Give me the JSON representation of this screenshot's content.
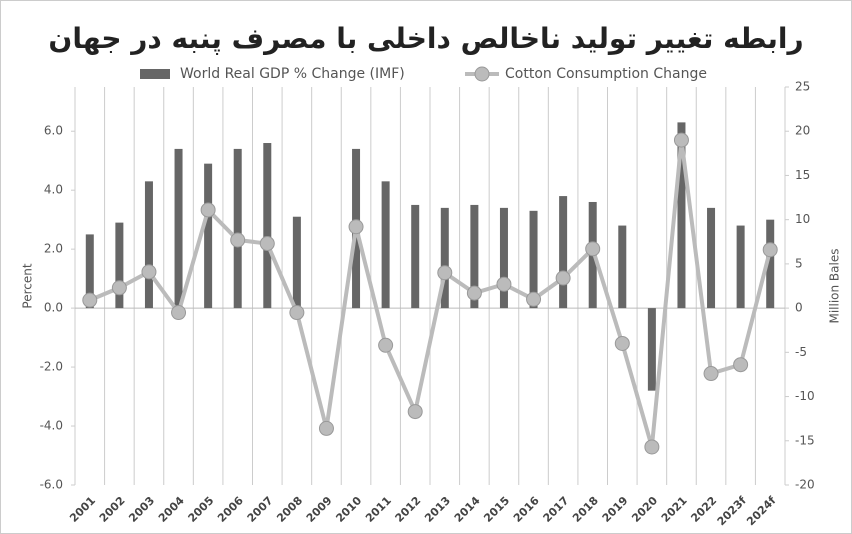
{
  "chart_data": {
    "type": "bar_line",
    "title": "رابطه تغییر تولید ناخالص داخلی با مصرف پنبه در جهان",
    "ylabel": "Percent",
    "y2label": "Million Bales",
    "categories": [
      "2001",
      "2002",
      "2003",
      "2004",
      "2005",
      "2006",
      "2007",
      "2008",
      "2009",
      "2010",
      "2011",
      "2012",
      "2013",
      "2014",
      "2015",
      "2016",
      "2017",
      "2018",
      "2019",
      "2020",
      "2021",
      "2022",
      "2023f",
      "2024f"
    ],
    "series": [
      {
        "name": "World Real GDP % Change (IMF)",
        "type": "bar",
        "color": "#666666",
        "values": [
          2.5,
          2.9,
          4.3,
          5.4,
          4.9,
          5.4,
          5.6,
          3.1,
          null,
          5.4,
          4.3,
          3.5,
          3.4,
          3.5,
          3.4,
          3.3,
          3.8,
          3.6,
          2.8,
          -2.8,
          6.3,
          3.4,
          2.8,
          3.0
        ]
      },
      {
        "name": "Cotton Consumption Change",
        "type": "line",
        "axis": "y2",
        "color": "#bbbbbb",
        "values": [
          0.9,
          2.3,
          4.1,
          -0.5,
          11.1,
          7.7,
          7.3,
          -0.5,
          -13.6,
          9.2,
          -4.2,
          -11.7,
          4.0,
          1.7,
          2.7,
          1.0,
          3.4,
          6.7,
          -4.0,
          -15.7,
          19.0,
          -7.4,
          -6.4,
          6.6
        ]
      }
    ],
    "ylim": [
      -6,
      7.5
    ],
    "yticks": [
      {
        "value": -6,
        "label": "-6.0"
      },
      {
        "value": -4,
        "label": "-4.0"
      },
      {
        "value": -2,
        "label": "-2.0"
      },
      {
        "value": 0,
        "label": "0.0"
      },
      {
        "value": 2,
        "label": "2.0"
      },
      {
        "value": 4,
        "label": "4.0"
      },
      {
        "value": 6,
        "label": "6.0"
      }
    ],
    "y2lim": [
      -20,
      25
    ],
    "y2ticks": [
      -20,
      -15,
      -10,
      -5,
      0,
      5,
      10,
      15,
      20,
      25
    ],
    "grid": true,
    "legend": "top"
  }
}
